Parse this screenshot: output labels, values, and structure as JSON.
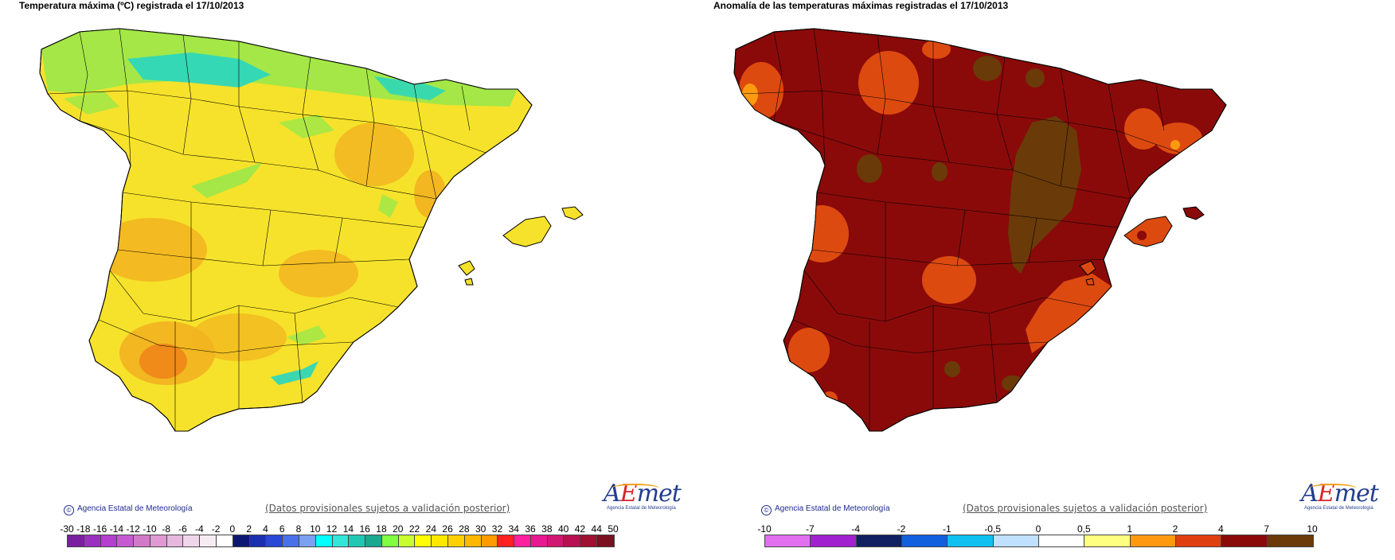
{
  "left_map": {
    "title": "Temperatura máxima (ºC) registrada el 17/10/2013",
    "credit": "Agencia Estatal de Meteorología",
    "disclaimer": "(Datos provisionales sujetos a validación posterior)",
    "logo_text": "AEmet",
    "logo_sub": "Agencia Estatal de Meteorología",
    "legend": {
      "labels": [
        "-30",
        "-18",
        "-16",
        "-14",
        "-12",
        "-10",
        "-8",
        "-6",
        "-4",
        "-2",
        "0",
        "2",
        "4",
        "6",
        "8",
        "10",
        "12",
        "14",
        "16",
        "18",
        "20",
        "22",
        "24",
        "26",
        "28",
        "30",
        "32",
        "34",
        "36",
        "38",
        "40",
        "42",
        "44",
        "50"
      ],
      "colors": [
        "#7a1fa2",
        "#9b2fc0",
        "#b33fd0",
        "#c45bd0",
        "#d27ac8",
        "#de9ad2",
        "#e6b8dd",
        "#f0d6ea",
        "#f7ecf4",
        "#ffffff",
        "#0b1a70",
        "#1b2fb0",
        "#2848d8",
        "#4870e8",
        "#7aa0f0",
        "#00ffff",
        "#32e6d8",
        "#20c8b4",
        "#1aa890",
        "#80ff40",
        "#c8ff30",
        "#ffff00",
        "#ffe800",
        "#ffd000",
        "#ffb800",
        "#ff9a00",
        "#ff2020",
        "#ff20a0",
        "#e81890",
        "#d01870",
        "#b81050",
        "#a01030",
        "#7a1020"
      ]
    }
  },
  "right_map": {
    "title": "Anomalía de las temperaturas máximas registradas el 17/10/2013",
    "credit": "Agencia Estatal de Meteorología",
    "disclaimer": "(Datos provisionales sujetos a validación posterior)",
    "logo_text": "AEmet",
    "logo_sub": "Agencia Estatal de Meteorología",
    "legend": {
      "labels": [
        "-10",
        "-7",
        "-4",
        "-2",
        "-1",
        "-0,5",
        "0",
        "0,5",
        "1",
        "2",
        "4",
        "7",
        "10"
      ],
      "colors": [
        "#e070f0",
        "#a020d0",
        "#102060",
        "#1060e0",
        "#10c0f0",
        "#c0e0ff",
        "#ffffff",
        "#ffff80",
        "#ff9a10",
        "#e04010",
        "#8a0a0a",
        "#6a3a08"
      ]
    }
  },
  "colors": {
    "map_yellow": "#f6e22a",
    "map_orange": "#f2b320",
    "map_green": "#9be84a",
    "map_teal": "#28d6c0",
    "anomaly_darkred": "#8a0a0a",
    "anomaly_orange": "#dd4a10",
    "anomaly_brown": "#6a3a08"
  }
}
